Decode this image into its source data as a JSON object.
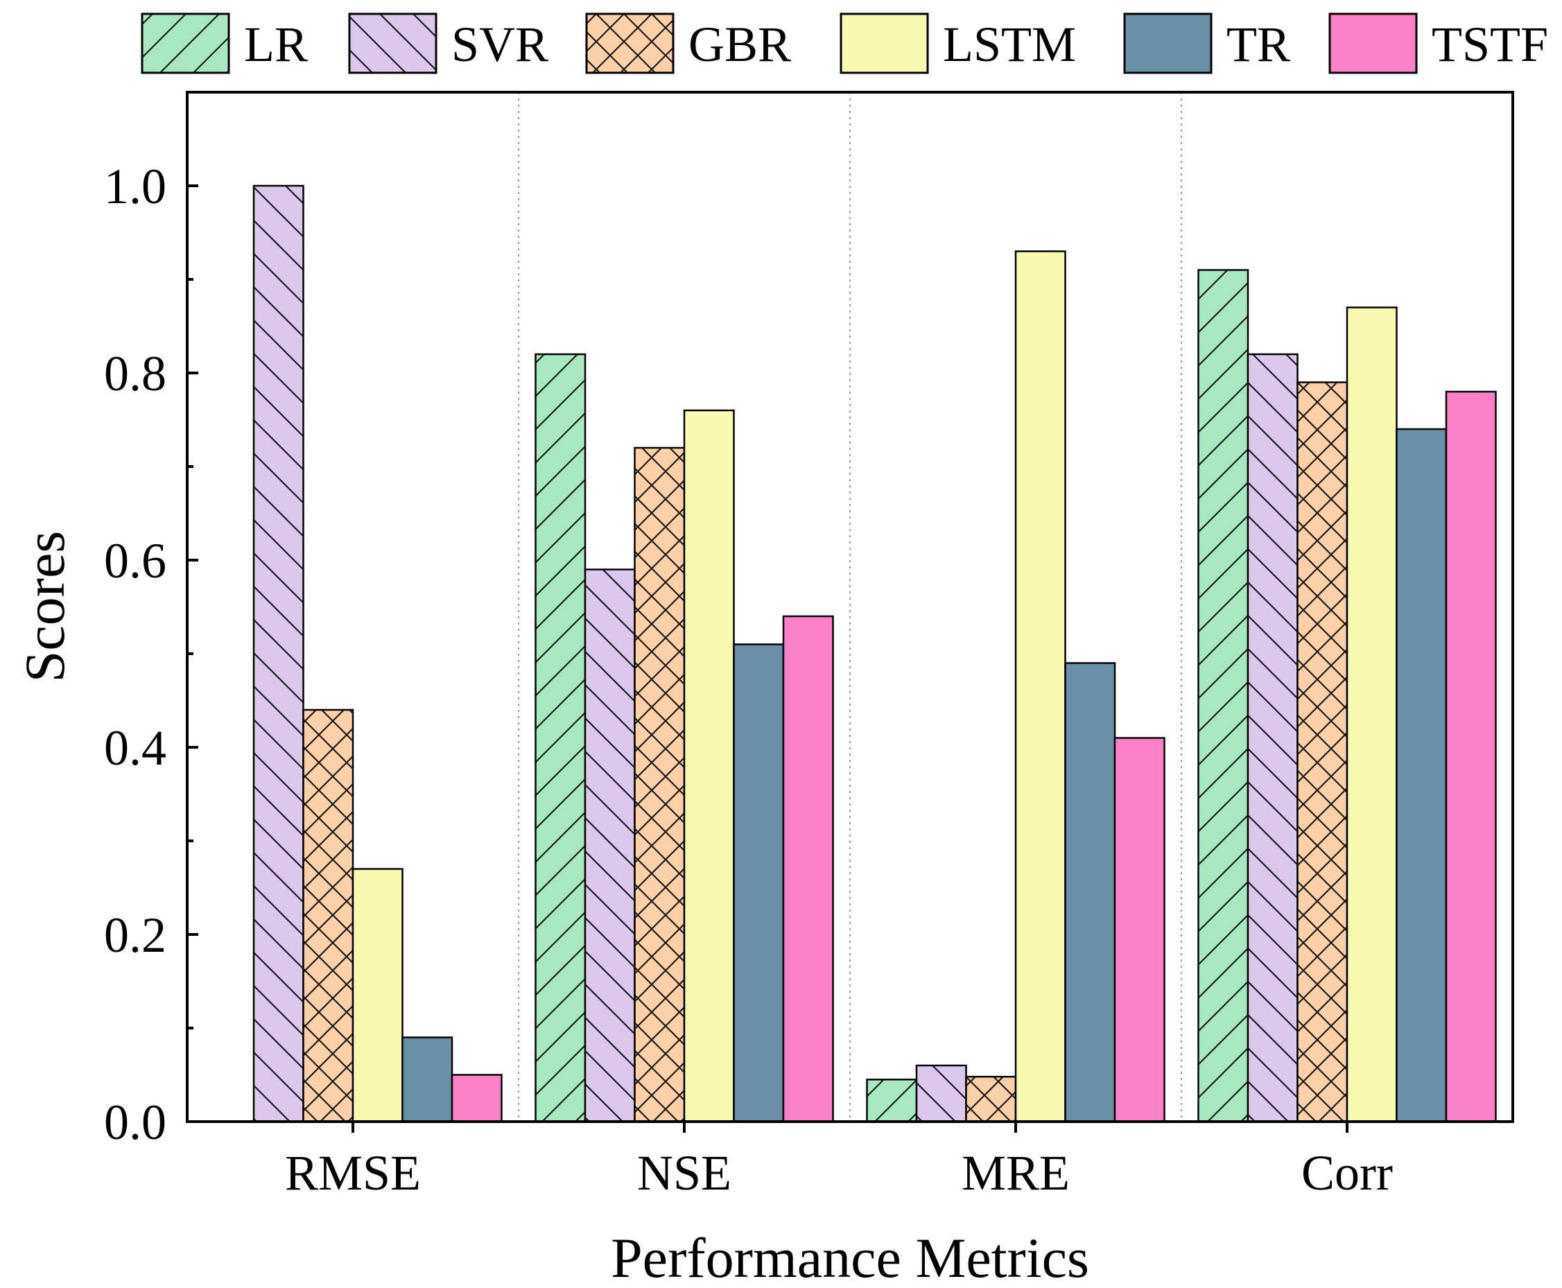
{
  "chart_data": {
    "type": "bar",
    "title": "",
    "xlabel": "Performance Metrics",
    "ylabel": "Scores",
    "ylim": [
      0,
      1.1
    ],
    "yticks": [
      "0.0",
      "0.2",
      "0.4",
      "0.6",
      "0.8",
      "1.0"
    ],
    "ytick_values": [
      0,
      0.2,
      0.4,
      0.6,
      0.8,
      1.0
    ],
    "categories": [
      "RMSE",
      "NSE",
      "MRE",
      "Corr"
    ],
    "legend_position": "top",
    "grid": "vertical dotted separators between categories",
    "series": [
      {
        "name": "LR",
        "color": "#a8e8c0",
        "pattern": "forward-diagonal",
        "values": [
          0.0,
          0.82,
          0.045,
          0.91
        ]
      },
      {
        "name": "SVR",
        "color": "#dcc8ec",
        "pattern": "back-diagonal",
        "values": [
          1.0,
          0.59,
          0.06,
          0.82
        ]
      },
      {
        "name": "GBR",
        "color": "#fdd0a8",
        "pattern": "cross-hatch",
        "values": [
          0.44,
          0.72,
          0.048,
          0.79
        ]
      },
      {
        "name": "LSTM",
        "color": "#f8f8b0",
        "pattern": "none",
        "values": [
          0.27,
          0.76,
          0.93,
          0.87
        ]
      },
      {
        "name": "TR",
        "color": "#6a90a8",
        "pattern": "none",
        "values": [
          0.09,
          0.51,
          0.49,
          0.74
        ]
      },
      {
        "name": "TSTF",
        "color": "#fc80c8",
        "pattern": "none",
        "values": [
          0.05,
          0.54,
          0.41,
          0.78
        ]
      }
    ]
  }
}
